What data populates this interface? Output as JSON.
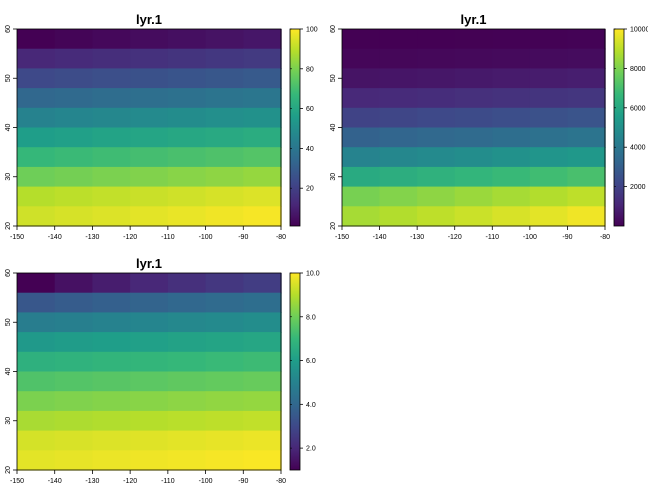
{
  "chart_data": [
    {
      "type": "heatmap",
      "title": "lyr.1",
      "x_ticks": [
        -150,
        -140,
        -130,
        -120,
        -110,
        -100,
        -90,
        -80
      ],
      "y_ticks": [
        20,
        30,
        40,
        50,
        60
      ],
      "xlim": [
        -150,
        -80
      ],
      "ylim": [
        20,
        60
      ],
      "cell_size": [
        10,
        4
      ],
      "legend_ticks": [
        20,
        40,
        60,
        80,
        100
      ],
      "legend_range": [
        1,
        100
      ],
      "rows_top_to_bottom": [
        [
          1,
          2,
          3,
          4,
          5,
          6,
          7,
          8
        ],
        [
          12,
          13,
          14,
          15,
          16,
          17,
          18,
          19
        ],
        [
          23,
          24,
          25,
          26,
          27,
          28,
          29,
          30
        ],
        [
          34,
          35,
          36,
          37,
          38,
          39,
          40,
          41
        ],
        [
          45,
          46,
          47,
          48,
          49,
          50,
          51,
          52
        ],
        [
          56,
          57,
          58,
          59,
          60,
          61,
          62,
          63
        ],
        [
          67,
          68,
          69,
          70,
          71,
          72,
          73,
          74
        ],
        [
          78,
          79,
          80,
          81,
          82,
          83,
          84,
          85
        ],
        [
          89,
          90,
          91,
          92,
          93,
          94,
          95,
          96
        ],
        [
          93,
          94,
          95,
          96,
          97,
          98,
          99,
          100
        ]
      ]
    },
    {
      "type": "heatmap",
      "title": "lyr.1",
      "x_ticks": [
        -150,
        -140,
        -130,
        -120,
        -110,
        -100,
        -90,
        -80
      ],
      "y_ticks": [
        20,
        30,
        40,
        50,
        60
      ],
      "xlim": [
        -150,
        -80
      ],
      "ylim": [
        20,
        60
      ],
      "cell_size": [
        10,
        4
      ],
      "legend_ticks": [
        2000,
        4000,
        6000,
        8000,
        10000
      ],
      "legend_range": [
        1,
        10000
      ],
      "rows_top_to_bottom": [
        [
          1,
          4,
          9,
          16,
          25,
          36,
          49,
          64
        ],
        [
          144,
          169,
          196,
          225,
          256,
          289,
          324,
          361
        ],
        [
          529,
          576,
          625,
          676,
          729,
          784,
          841,
          900
        ],
        [
          1156,
          1225,
          1296,
          1369,
          1444,
          1521,
          1600,
          1681
        ],
        [
          2025,
          2116,
          2209,
          2304,
          2401,
          2500,
          2601,
          2704
        ],
        [
          3136,
          3249,
          3364,
          3481,
          3600,
          3721,
          3844,
          3969
        ],
        [
          4489,
          4624,
          4761,
          4900,
          5041,
          5184,
          5329,
          5476
        ],
        [
          6084,
          6241,
          6400,
          6561,
          6724,
          6889,
          7056,
          7225
        ],
        [
          7921,
          8100,
          8281,
          8464,
          8649,
          8836,
          9025,
          9216
        ],
        [
          8649,
          8836,
          9025,
          9216,
          9409,
          9604,
          9801,
          10000
        ]
      ]
    },
    {
      "type": "heatmap",
      "title": "lyr.1",
      "x_ticks": [
        -150,
        -140,
        -130,
        -120,
        -110,
        -100,
        -90,
        -80
      ],
      "y_ticks": [
        20,
        30,
        40,
        50,
        60
      ],
      "xlim": [
        -150,
        -80
      ],
      "ylim": [
        20,
        60
      ],
      "cell_size": [
        10,
        4
      ],
      "legend_ticks": [
        2.0,
        4.0,
        6.0,
        8.0,
        10.0
      ],
      "legend_tick_labels": [
        "2.0",
        "4.0",
        "6.0",
        "8.0",
        "10.0"
      ],
      "legend_range": [
        1,
        10
      ],
      "rows_top_to_bottom": [
        [
          1.0,
          1.41,
          1.73,
          2.0,
          2.24,
          2.45,
          2.65,
          2.83
        ],
        [
          3.46,
          3.61,
          3.74,
          3.87,
          4.0,
          4.12,
          4.24,
          4.36
        ],
        [
          4.8,
          4.9,
          5.0,
          5.1,
          5.2,
          5.29,
          5.39,
          5.48
        ],
        [
          5.83,
          5.92,
          6.0,
          6.08,
          6.16,
          6.24,
          6.32,
          6.4
        ],
        [
          6.71,
          6.78,
          6.86,
          6.93,
          7.0,
          7.07,
          7.14,
          7.21
        ],
        [
          7.48,
          7.55,
          7.62,
          7.68,
          7.75,
          7.81,
          7.87,
          7.94
        ],
        [
          8.19,
          8.25,
          8.31,
          8.37,
          8.43,
          8.49,
          8.54,
          8.6
        ],
        [
          8.83,
          8.89,
          8.94,
          9.0,
          9.06,
          9.11,
          9.17,
          9.22
        ],
        [
          9.43,
          9.49,
          9.54,
          9.59,
          9.64,
          9.7,
          9.75,
          9.8
        ],
        [
          9.64,
          9.7,
          9.75,
          9.8,
          9.85,
          9.9,
          9.95,
          10.0
        ]
      ]
    }
  ],
  "colors": {
    "viridis": [
      "#440154",
      "#482878",
      "#3e4989",
      "#31688e",
      "#26828e",
      "#1f9e89",
      "#35b779",
      "#6ece58",
      "#b5de2b",
      "#fde725"
    ],
    "axis": "#000000",
    "background": "#ffffff"
  }
}
